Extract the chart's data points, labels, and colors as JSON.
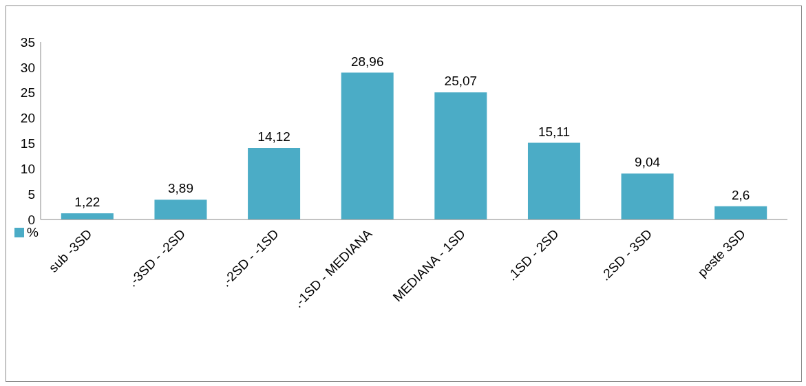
{
  "chart_data": {
    "type": "bar",
    "categories": [
      "sub -3SD",
      ".-3SD - -2SD",
      ".-2SD - -1SD",
      ".-1SD - MEDIANA",
      "MEDIANA - 1SD",
      ".1SD - 2SD",
      ".2SD - 3SD",
      "peste 3SD"
    ],
    "series": [
      {
        "name": "%",
        "color": "#4bacc6",
        "values": [
          1.22,
          3.89,
          14.12,
          28.96,
          25.07,
          15.11,
          9.04,
          2.6
        ],
        "value_labels": [
          "1,22",
          "3,89",
          "14,12",
          "28,96",
          "25,07",
          "15,11",
          "9,04",
          "2,6"
        ]
      }
    ],
    "ylim": [
      0,
      35
    ],
    "yticks": [
      0,
      5,
      10,
      15,
      20,
      25,
      30,
      35
    ],
    "grid": false,
    "legend": "left"
  }
}
